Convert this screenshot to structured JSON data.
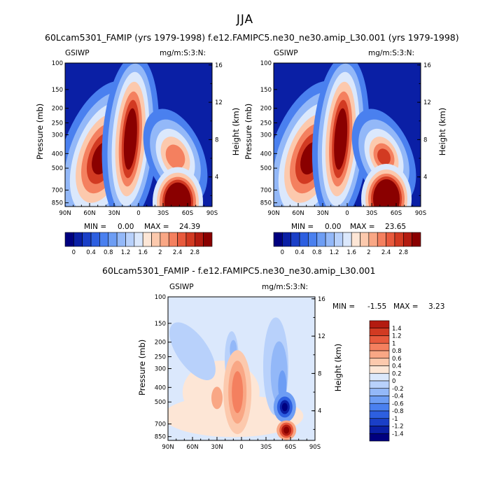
{
  "figure": {
    "season": "JJA"
  },
  "chart_data": [
    {
      "type": "heatmap",
      "title": "60Lcam5301_FAMIP (yrs 1979-1998)",
      "left_label": "GSIWP",
      "right_label": "mg/m:S:3:N:",
      "xlabel": "",
      "ylabel": "Pressure (mb)",
      "ylabel_right": "Height (km)",
      "x_ticks": [
        "90N",
        "60N",
        "30N",
        "0",
        "30S",
        "60S",
        "90S"
      ],
      "y_ticks": [
        "100",
        "150",
        "200",
        "250",
        "300",
        "400",
        "500",
        "700",
        "850"
      ],
      "y2_ticks": [
        "16",
        "12",
        "8",
        "4"
      ],
      "min_label": "MIN =",
      "min_value": "0.00",
      "max_label": "MAX =",
      "max_value": "24.39",
      "colorbar": {
        "orientation": "horizontal",
        "labels": [
          "0",
          "0.4",
          "0.8",
          "1.2",
          "1.6",
          "2",
          "2.4",
          "2.8"
        ],
        "levels": [
          -0.2,
          0,
          0.2,
          0.4,
          0.6,
          0.8,
          1.0,
          1.2,
          1.4,
          1.6,
          1.8,
          2.0,
          2.2,
          2.4,
          2.6,
          2.8,
          3.0
        ]
      },
      "features": [
        {
          "lat": 45,
          "pressure": 430,
          "value": 3.0
        },
        {
          "lat": 10,
          "pressure": 320,
          "value": 3.0
        },
        {
          "lat": -48,
          "pressure": 780,
          "value": 3.0
        },
        {
          "lat": -45,
          "pressure": 420,
          "value": 1.6
        }
      ]
    },
    {
      "type": "heatmap",
      "title": "f.e12.FAMIPC5.ne30_ne30.amip_L30.001 (yrs 1979-1998)",
      "left_label": "GSIWP",
      "right_label": "mg/m:S:3:N:",
      "xlabel": "",
      "ylabel": "Pressure (mb)",
      "ylabel_right": "Height (km)",
      "x_ticks": [
        "90N",
        "60N",
        "30N",
        "0",
        "30S",
        "60S",
        "90S"
      ],
      "y_ticks": [
        "100",
        "150",
        "200",
        "250",
        "300",
        "400",
        "500",
        "700",
        "850"
      ],
      "y2_ticks": [
        "16",
        "12",
        "8",
        "4"
      ],
      "min_label": "MIN =",
      "min_value": "0.00",
      "max_label": "MAX =",
      "max_value": "23.65",
      "colorbar": {
        "orientation": "horizontal",
        "labels": [
          "0",
          "0.4",
          "0.8",
          "1.2",
          "1.6",
          "2",
          "2.4",
          "2.8"
        ],
        "levels": [
          -0.2,
          0,
          0.2,
          0.4,
          0.6,
          0.8,
          1.0,
          1.2,
          1.4,
          1.6,
          1.8,
          2.0,
          2.2,
          2.4,
          2.6,
          2.8,
          3.0
        ]
      },
      "features": [
        {
          "lat": 45,
          "pressure": 430,
          "value": 3.0
        },
        {
          "lat": 8,
          "pressure": 320,
          "value": 3.0
        },
        {
          "lat": -48,
          "pressure": 740,
          "value": 3.0
        },
        {
          "lat": -45,
          "pressure": 420,
          "value": 2.2
        }
      ]
    },
    {
      "type": "heatmap",
      "title": "60Lcam5301_FAMIP - f.e12.FAMIPC5.ne30_ne30.amip_L30.001",
      "left_label": "GSIWP",
      "right_label": "mg/m:S:3:N:",
      "xlabel": "",
      "ylabel": "Pressure (mb)",
      "ylabel_right": "Height (km)",
      "x_ticks": [
        "90N",
        "60N",
        "30N",
        "0",
        "30S",
        "60S",
        "90S"
      ],
      "y_ticks": [
        "100",
        "150",
        "200",
        "250",
        "300",
        "400",
        "500",
        "700",
        "850"
      ],
      "y2_ticks": [
        "16",
        "12",
        "8",
        "4"
      ],
      "min_label": "MIN =",
      "min_value": "-1.55",
      "max_label": "MAX =",
      "max_value": "3.23",
      "colorbar": {
        "orientation": "vertical",
        "labels": [
          "1.4",
          "1.2",
          "1",
          "0.8",
          "0.6",
          "0.4",
          "0.2",
          "0",
          "-0.2",
          "-0.4",
          "-0.6",
          "-0.8",
          "-1",
          "-1.2",
          "-1.4"
        ],
        "levels": [
          1.5,
          1.3,
          1.1,
          0.9,
          0.7,
          0.5,
          0.3,
          0.1,
          -0.1,
          -0.3,
          -0.5,
          -0.7,
          -0.9,
          -1.1,
          -1.3,
          -1.5
        ]
      },
      "features": [
        {
          "lat": 5,
          "pressure": 430,
          "value": 0.8
        },
        {
          "lat": -53,
          "pressure": 540,
          "value": -1.5
        },
        {
          "lat": -55,
          "pressure": 720,
          "value": 1.5
        },
        {
          "lat": -45,
          "pressure": 300,
          "value": -0.6
        }
      ]
    }
  ],
  "colors": {
    "colormap": [
      "#00007f",
      "#0a1fa5",
      "#1a3fc7",
      "#2d5fe0",
      "#4a80ef",
      "#6d9df4",
      "#93b8f8",
      "#b8d1fb",
      "#dbe8fc",
      "#fde6d6",
      "#fcc9ad",
      "#f9a785",
      "#f4805f",
      "#e85a3d",
      "#d23a22",
      "#b31b10",
      "#8a0000"
    ],
    "diff_colormap": [
      "#8a0000",
      "#b31b10",
      "#d23a22",
      "#e85a3d",
      "#f4805f",
      "#f9a785",
      "#fcc9ad",
      "#fde6d6",
      "#dbe8fc",
      "#b8d1fb",
      "#93b8f8",
      "#6d9df4",
      "#4a80ef",
      "#2d5fe0",
      "#1a3fc7",
      "#0a1fa5",
      "#00007f"
    ]
  }
}
